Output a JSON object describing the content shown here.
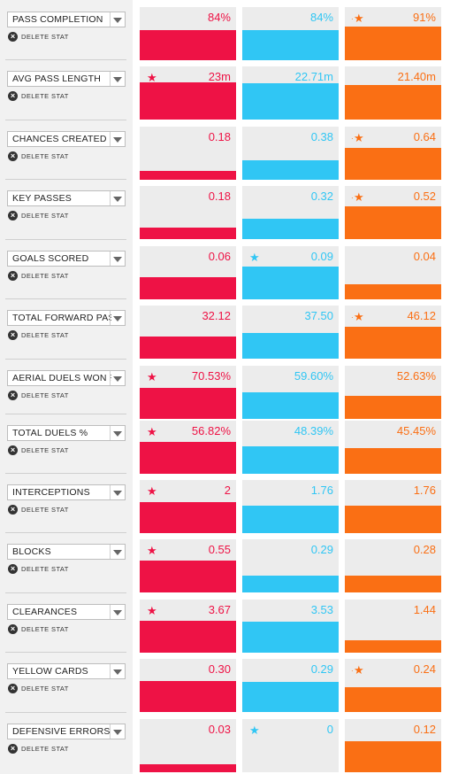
{
  "colors": {
    "p0": "#ee1245",
    "p1": "#30c6f4",
    "p2": "#fa6f14",
    "label_text": "#222222"
  },
  "delete_label": "DELETE STAT",
  "stats": [
    {
      "label": "PASS COMPLETION",
      "values": [
        "84%",
        "84%",
        "91%"
      ],
      "fill": [
        0.57,
        0.57,
        0.64
      ],
      "star": 2
    },
    {
      "label": "AVG PASS LENGTH",
      "values": [
        "23m",
        "22.71m",
        "21.40m"
      ],
      "fill": [
        0.7,
        0.69,
        0.65
      ],
      "star": 0
    },
    {
      "label": "CHANCES CREATED",
      "values": [
        "0.18",
        "0.38",
        "0.64"
      ],
      "fill": [
        0.16,
        0.36,
        0.6
      ],
      "star": 2
    },
    {
      "label": "KEY PASSES",
      "values": [
        "0.18",
        "0.32",
        "0.52"
      ],
      "fill": [
        0.22,
        0.38,
        0.62
      ],
      "star": 2
    },
    {
      "label": "GOALS SCORED",
      "values": [
        "0.06",
        "0.09",
        "0.04"
      ],
      "fill": [
        0.42,
        0.62,
        0.29
      ],
      "star": 1
    },
    {
      "label": "TOTAL FORWARD PASSES",
      "values": [
        "32.12",
        "37.50",
        "46.12"
      ],
      "fill": [
        0.42,
        0.48,
        0.6
      ],
      "star": 2
    },
    {
      "label": "AERIAL DUELS WON %",
      "values": [
        "70.53%",
        "59.60%",
        "52.63%"
      ],
      "fill": [
        0.59,
        0.5,
        0.44
      ],
      "star": 0
    },
    {
      "label": "TOTAL DUELS %",
      "values": [
        "56.82%",
        "48.39%",
        "45.45%"
      ],
      "fill": [
        0.6,
        0.51,
        0.48
      ],
      "star": 0
    },
    {
      "label": "INTERCEPTIONS",
      "values": [
        "2",
        "1.76",
        "1.76"
      ],
      "fill": [
        0.58,
        0.51,
        0.51
      ],
      "star": 0
    },
    {
      "label": "BLOCKS",
      "values": [
        "0.55",
        "0.29",
        "0.28"
      ],
      "fill": [
        0.6,
        0.32,
        0.31
      ],
      "star": 0
    },
    {
      "label": "CLEARANCES",
      "values": [
        "3.67",
        "3.53",
        "1.44"
      ],
      "fill": [
        0.6,
        0.58,
        0.24
      ],
      "star": 0
    },
    {
      "label": "YELLOW CARDS",
      "values": [
        "0.30",
        "0.29",
        "0.24"
      ],
      "fill": [
        0.59,
        0.57,
        0.47
      ],
      "star": 2
    },
    {
      "label": "DEFENSIVE ERRORS",
      "values": [
        "0.03",
        "0",
        "0.12"
      ],
      "fill": [
        0.15,
        0.0,
        0.59
      ],
      "star": 1
    }
  ]
}
